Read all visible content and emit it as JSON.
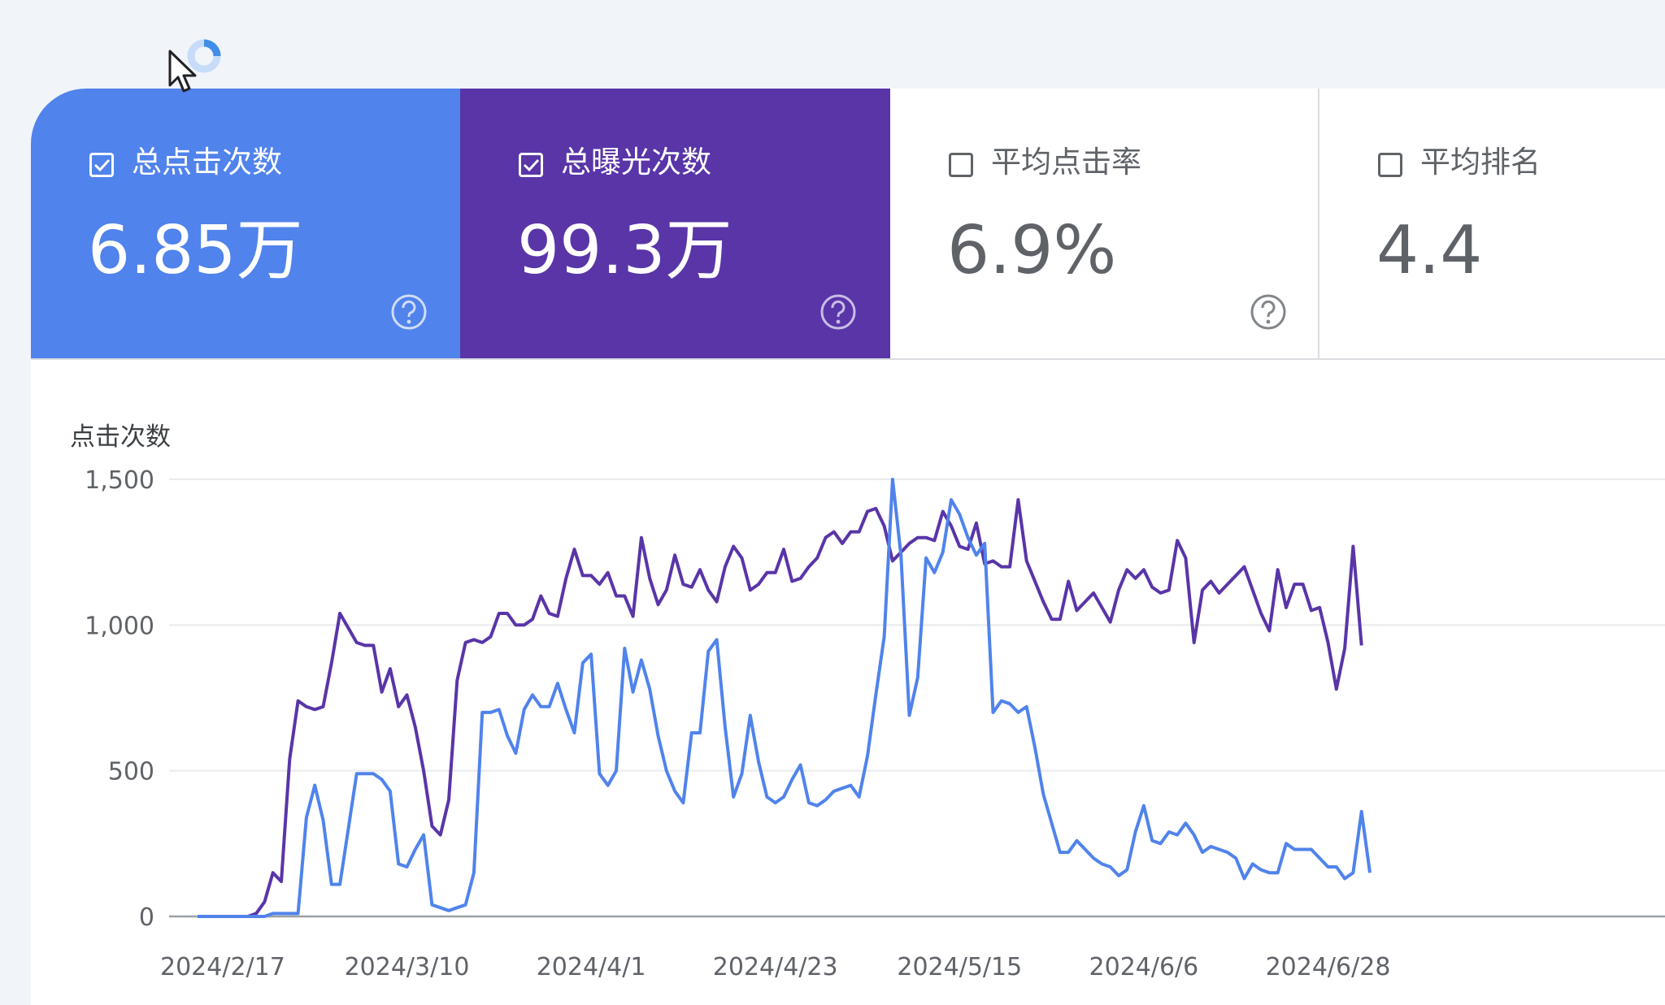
{
  "colors": {
    "clicks": "#5083eb",
    "impressions": "#5935a8",
    "grid": "#e8eaed",
    "axis_text": "#5f6368"
  },
  "scorecards": [
    {
      "label": "总点击次数",
      "value": "6.85万",
      "selected": true,
      "color": "#5083eb",
      "help_icon": "help-circle-icon"
    },
    {
      "label": "总曝光次数",
      "value": "99.3万",
      "selected": true,
      "color": "#5935a8",
      "help_icon": "help-circle-icon"
    },
    {
      "label": "平均点击率",
      "value": "6.9%",
      "selected": false,
      "help_icon": "help-circle-icon"
    },
    {
      "label": "平均排名",
      "value": "4.4",
      "selected": false
    }
  ],
  "chart_data": {
    "type": "line",
    "ylabel": "点击次数",
    "ylim": [
      0,
      1500
    ],
    "yticks": [
      0,
      500,
      1000,
      1500
    ],
    "ytick_labels": [
      "0",
      "500",
      "1,000",
      "1,500"
    ],
    "x_start": "2024/2/14",
    "x_tick_labels": [
      "2024/2/17",
      "2024/3/10",
      "2024/4/1",
      "2024/4/23",
      "2024/5/15",
      "2024/6/6",
      "2024/6/28"
    ],
    "grid": true,
    "series": [
      {
        "color": "#5935a8",
        "values": [
          0,
          0,
          0,
          0,
          0,
          0,
          0,
          10,
          50,
          150,
          120,
          540,
          740,
          720,
          710,
          720,
          870,
          1040,
          990,
          940,
          930,
          930,
          770,
          850,
          720,
          760,
          650,
          500,
          310,
          280,
          400,
          810,
          940,
          950,
          940,
          960,
          1040,
          1040,
          1000,
          1000,
          1020,
          1100,
          1040,
          1030,
          1160,
          1260,
          1170,
          1170,
          1140,
          1180,
          1100,
          1100,
          1030,
          1300,
          1160,
          1070,
          1120,
          1240,
          1140,
          1130,
          1190,
          1120,
          1080,
          1200,
          1270,
          1230,
          1120,
          1140,
          1180,
          1180,
          1260,
          1150,
          1160,
          1200,
          1230,
          1300,
          1320,
          1280,
          1320,
          1320,
          1390,
          1400,
          1340,
          1220,
          1250,
          1280,
          1300,
          1300,
          1290,
          1390,
          1340,
          1270,
          1260,
          1350,
          1210,
          1220,
          1200,
          1200,
          1430,
          1220,
          1150,
          1080,
          1020,
          1020,
          1150,
          1050,
          1080,
          1110,
          1060,
          1010,
          1120,
          1190,
          1160,
          1190,
          1130,
          1110,
          1120,
          1290,
          1230,
          940,
          1120,
          1150,
          1110,
          1140,
          1170,
          1200,
          1120,
          1040,
          980,
          1190,
          1060,
          1140,
          1140,
          1050,
          1060,
          940,
          780,
          920,
          1270,
          930
        ]
      },
      {
        "color": "#5083eb",
        "values": [
          0,
          0,
          0,
          0,
          0,
          0,
          0,
          0,
          0,
          10,
          10,
          10,
          10,
          340,
          450,
          330,
          110,
          110,
          300,
          490,
          490,
          490,
          470,
          430,
          180,
          170,
          230,
          280,
          40,
          30,
          20,
          30,
          40,
          150,
          700,
          700,
          710,
          620,
          560,
          710,
          760,
          720,
          720,
          800,
          710,
          630,
          870,
          900,
          490,
          450,
          500,
          920,
          770,
          880,
          780,
          620,
          500,
          430,
          390,
          630,
          630,
          910,
          950,
          650,
          410,
          490,
          690,
          530,
          410,
          390,
          410,
          470,
          520,
          390,
          380,
          400,
          430,
          440,
          450,
          410,
          550,
          760,
          960,
          1500,
          1240,
          690,
          820,
          1230,
          1180,
          1250,
          1430,
          1380,
          1300,
          1240,
          1280,
          700,
          740,
          730,
          700,
          720,
          580,
          420,
          320,
          220,
          220,
          260,
          230,
          200,
          180,
          170,
          140,
          160,
          290,
          380,
          260,
          250,
          290,
          280,
          320,
          280,
          220,
          240,
          230,
          220,
          200,
          130,
          180,
          160,
          150,
          150,
          250,
          230,
          230,
          230,
          200,
          170,
          170,
          130,
          150,
          360,
          150
        ]
      }
    ]
  }
}
